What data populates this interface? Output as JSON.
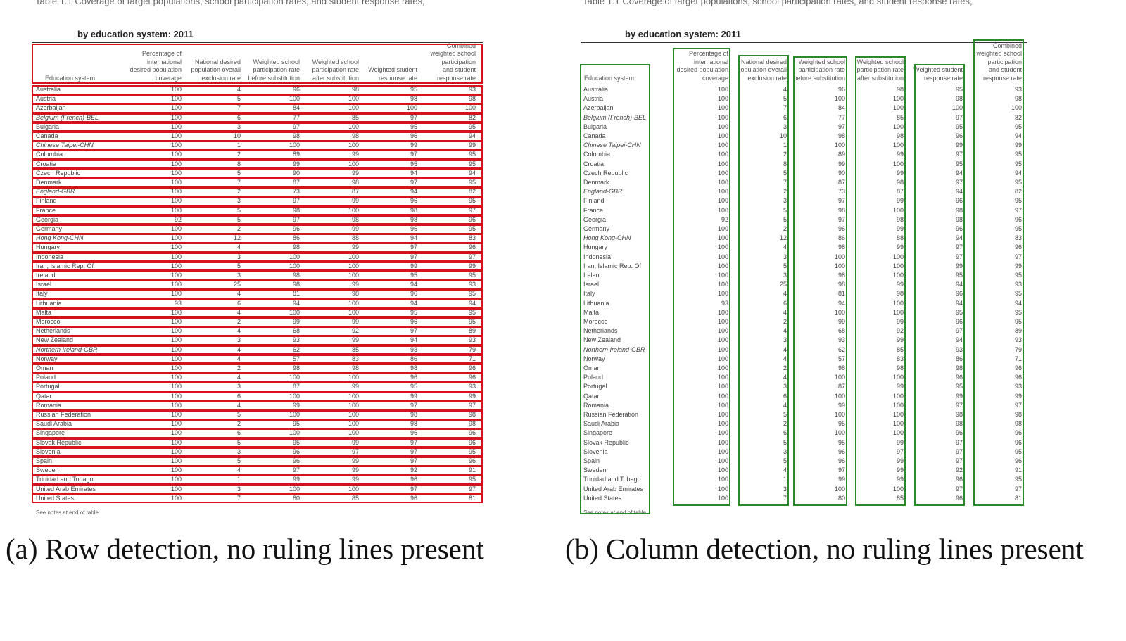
{
  "table": {
    "cutoff_title": "Table 1.1 Coverage of target populations, school participation rates, and student response rates,",
    "subtitle": "by education system: 2011",
    "note": "See notes at end of table.",
    "headers": [
      "Education system",
      "Percentage of\ninternational\ndesired population\ncoverage",
      "National desired\npopulation overall\nexclusion rate",
      "Weighted school\nparticipation rate\nbefore substitution",
      "Weighted school\nparticipation rate\nafter substitution",
      "Weighted student\nresponse rate",
      "Combined\nweighted school\nparticipation\nand student\nresponse rate"
    ],
    "rows": [
      {
        "name": "Australia",
        "cov": "100",
        "exc": "4",
        "before": "96",
        "after": "98",
        "resp": "95",
        "comb": "93",
        "italic": false
      },
      {
        "name": "Austria",
        "cov": "100",
        "exc": "5",
        "before": "100",
        "after": "100",
        "resp": "98",
        "comb": "98",
        "italic": false
      },
      {
        "name": "Azerbaijan",
        "cov": "100",
        "exc": "7",
        "before": "84",
        "after": "100",
        "resp": "100",
        "comb": "100",
        "italic": false
      },
      {
        "name": "Belgium (French)-BEL",
        "cov": "100",
        "exc": "6",
        "before": "77",
        "after": "85",
        "resp": "97",
        "comb": "82",
        "italic": true
      },
      {
        "name": "Bulgaria",
        "cov": "100",
        "exc": "3",
        "before": "97",
        "after": "100",
        "resp": "95",
        "comb": "95",
        "italic": false
      },
      {
        "name": "Canada",
        "cov": "100",
        "exc": "10",
        "before": "98",
        "after": "98",
        "resp": "96",
        "comb": "94",
        "italic": false
      },
      {
        "name": "Chinese Taipei-CHN",
        "cov": "100",
        "exc": "1",
        "before": "100",
        "after": "100",
        "resp": "99",
        "comb": "99",
        "italic": true
      },
      {
        "name": "Colombia",
        "cov": "100",
        "exc": "2",
        "before": "89",
        "after": "99",
        "resp": "97",
        "comb": "95",
        "italic": false
      },
      {
        "name": "Croatia",
        "cov": "100",
        "exc": "8",
        "before": "99",
        "after": "100",
        "resp": "95",
        "comb": "95",
        "italic": false
      },
      {
        "name": "Czech Republic",
        "cov": "100",
        "exc": "5",
        "before": "90",
        "after": "99",
        "resp": "94",
        "comb": "94",
        "italic": false
      },
      {
        "name": "Denmark",
        "cov": "100",
        "exc": "7",
        "before": "87",
        "after": "98",
        "resp": "97",
        "comb": "95",
        "italic": false
      },
      {
        "name": "England-GBR",
        "cov": "100",
        "exc": "2",
        "before": "73",
        "after": "87",
        "resp": "94",
        "comb": "82",
        "italic": true
      },
      {
        "name": "Finland",
        "cov": "100",
        "exc": "3",
        "before": "97",
        "after": "99",
        "resp": "96",
        "comb": "95",
        "italic": false
      },
      {
        "name": "France",
        "cov": "100",
        "exc": "5",
        "before": "98",
        "after": "100",
        "resp": "98",
        "comb": "97",
        "italic": false
      },
      {
        "name": "Georgia",
        "cov": "92",
        "exc": "5",
        "before": "97",
        "after": "98",
        "resp": "98",
        "comb": "96",
        "italic": false
      },
      {
        "name": "Germany",
        "cov": "100",
        "exc": "2",
        "before": "96",
        "after": "99",
        "resp": "96",
        "comb": "95",
        "italic": false
      },
      {
        "name": "Hong Kong-CHN",
        "cov": "100",
        "exc": "12",
        "before": "86",
        "after": "88",
        "resp": "94",
        "comb": "83",
        "italic": true
      },
      {
        "name": "Hungary",
        "cov": "100",
        "exc": "4",
        "before": "98",
        "after": "99",
        "resp": "97",
        "comb": "96",
        "italic": false
      },
      {
        "name": "Indonesia",
        "cov": "100",
        "exc": "3",
        "before": "100",
        "after": "100",
        "resp": "97",
        "comb": "97",
        "italic": false
      },
      {
        "name": "Iran, Islamic Rep. Of",
        "cov": "100",
        "exc": "5",
        "before": "100",
        "after": "100",
        "resp": "99",
        "comb": "99",
        "italic": false
      },
      {
        "name": "Ireland",
        "cov": "100",
        "exc": "3",
        "before": "98",
        "after": "100",
        "resp": "95",
        "comb": "95",
        "italic": false
      },
      {
        "name": "Israel",
        "cov": "100",
        "exc": "25",
        "before": "98",
        "after": "99",
        "resp": "94",
        "comb": "93",
        "italic": false
      },
      {
        "name": "Italy",
        "cov": "100",
        "exc": "4",
        "before": "81",
        "after": "98",
        "resp": "96",
        "comb": "95",
        "italic": false
      },
      {
        "name": "Lithuania",
        "cov": "93",
        "exc": "6",
        "before": "94",
        "after": "100",
        "resp": "94",
        "comb": "94",
        "italic": false
      },
      {
        "name": "Malta",
        "cov": "100",
        "exc": "4",
        "before": "100",
        "after": "100",
        "resp": "95",
        "comb": "95",
        "italic": false
      },
      {
        "name": "Morocco",
        "cov": "100",
        "exc": "2",
        "before": "99",
        "after": "99",
        "resp": "96",
        "comb": "95",
        "italic": false
      },
      {
        "name": "Netherlands",
        "cov": "100",
        "exc": "4",
        "before": "68",
        "after": "92",
        "resp": "97",
        "comb": "89",
        "italic": false
      },
      {
        "name": "New Zealand",
        "cov": "100",
        "exc": "3",
        "before": "93",
        "after": "99",
        "resp": "94",
        "comb": "93",
        "italic": false
      },
      {
        "name": "Northern Ireland-GBR",
        "cov": "100",
        "exc": "4",
        "before": "62",
        "after": "85",
        "resp": "93",
        "comb": "79",
        "italic": true
      },
      {
        "name": "Norway",
        "cov": "100",
        "exc": "4",
        "before": "57",
        "after": "83",
        "resp": "86",
        "comb": "71",
        "italic": false
      },
      {
        "name": "Oman",
        "cov": "100",
        "exc": "2",
        "before": "98",
        "after": "98",
        "resp": "98",
        "comb": "96",
        "italic": false
      },
      {
        "name": "Poland",
        "cov": "100",
        "exc": "4",
        "before": "100",
        "after": "100",
        "resp": "96",
        "comb": "96",
        "italic": false
      },
      {
        "name": "Portugal",
        "cov": "100",
        "exc": "3",
        "before": "87",
        "after": "99",
        "resp": "95",
        "comb": "93",
        "italic": false
      },
      {
        "name": "Qatar",
        "cov": "100",
        "exc": "6",
        "before": "100",
        "after": "100",
        "resp": "99",
        "comb": "99",
        "italic": false
      },
      {
        "name": "Romania",
        "cov": "100",
        "exc": "4",
        "before": "99",
        "after": "100",
        "resp": "97",
        "comb": "97",
        "italic": false
      },
      {
        "name": "Russian Federation",
        "cov": "100",
        "exc": "5",
        "before": "100",
        "after": "100",
        "resp": "98",
        "comb": "98",
        "italic": false
      },
      {
        "name": "Saudi Arabia",
        "cov": "100",
        "exc": "2",
        "before": "95",
        "after": "100",
        "resp": "98",
        "comb": "98",
        "italic": false
      },
      {
        "name": "Singapore",
        "cov": "100",
        "exc": "6",
        "before": "100",
        "after": "100",
        "resp": "96",
        "comb": "96",
        "italic": false
      },
      {
        "name": "Slovak Republic",
        "cov": "100",
        "exc": "5",
        "before": "95",
        "after": "99",
        "resp": "97",
        "comb": "96",
        "italic": false
      },
      {
        "name": "Slovenia",
        "cov": "100",
        "exc": "3",
        "before": "96",
        "after": "97",
        "resp": "97",
        "comb": "95",
        "italic": false
      },
      {
        "name": "Spain",
        "cov": "100",
        "exc": "5",
        "before": "96",
        "after": "99",
        "resp": "97",
        "comb": "96",
        "italic": false
      },
      {
        "name": "Sweden",
        "cov": "100",
        "exc": "4",
        "before": "97",
        "after": "99",
        "resp": "92",
        "comb": "91",
        "italic": false
      },
      {
        "name": "Trinidad and Tobago",
        "cov": "100",
        "exc": "1",
        "before": "99",
        "after": "99",
        "resp": "96",
        "comb": "95",
        "italic": false
      },
      {
        "name": "United Arab Emirates",
        "cov": "100",
        "exc": "3",
        "before": "100",
        "after": "100",
        "resp": "97",
        "comb": "97",
        "italic": false
      },
      {
        "name": "United States",
        "cov": "100",
        "exc": "7",
        "before": "80",
        "after": "85",
        "resp": "96",
        "comb": "81",
        "italic": false
      }
    ]
  },
  "colors": {
    "row_box": "#d6121d",
    "column_box": "#2a8a2a"
  },
  "captions": {
    "a": "(a) Row detection, no ruling lines present",
    "b": "(b) Column detection, no ruling lines present"
  }
}
